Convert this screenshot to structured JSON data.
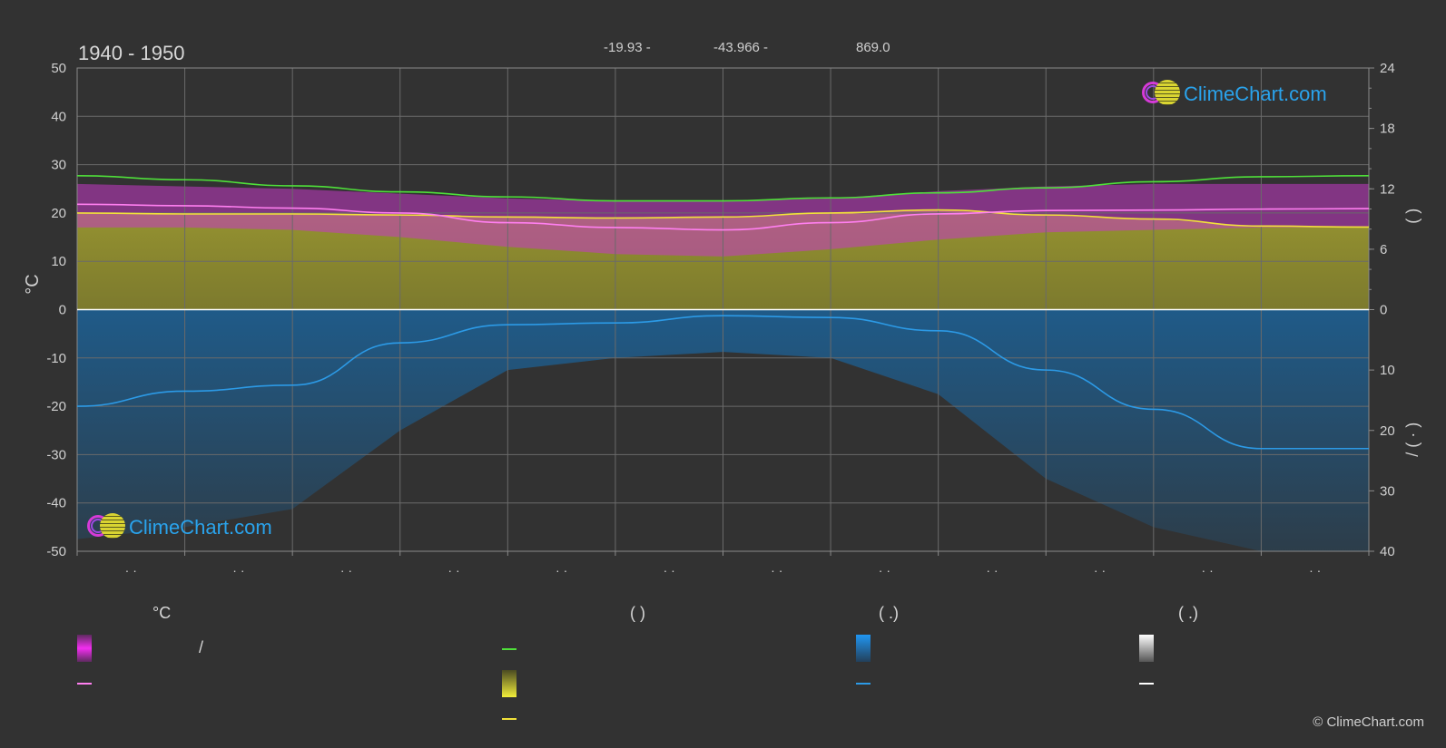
{
  "header": {
    "period": "1940 - 1950",
    "coords": [
      "-19.93 -",
      "-43.966 -",
      "869.0"
    ]
  },
  "logo": {
    "text": "ClimeChart.com"
  },
  "copyright": "© ClimeChart.com",
  "legend": {
    "col1_title": "°C",
    "col1_sep": "/",
    "col2_title": "(          )",
    "col3_title": "(   .)",
    "col4_title": "(   .)"
  },
  "colors": {
    "background": "#323232",
    "grid": "#6a6a6a",
    "temp_band": "#c438c6",
    "sun_band": "#a7a430",
    "precip_band": "#1d5f92",
    "daylight_line": "#4fe03a",
    "temp_mean_line": "#ff7ff0",
    "sunshine_line": "#f2e23a",
    "precip_line": "#2c9ae6",
    "zero_line": "#ffffff"
  },
  "chart_data": {
    "type": "line",
    "title": "1940 - 1950",
    "ylabel": "°C",
    "ylim": [
      -50,
      50
    ],
    "yticks": [
      50,
      40,
      30,
      20,
      10,
      0,
      -10,
      -20,
      -30,
      -40,
      -50
    ],
    "right_axis_upper": {
      "label": "(    )",
      "range": [
        0,
        24
      ],
      "ticks": [
        24,
        18,
        12,
        6,
        0
      ]
    },
    "right_axis_lower": {
      "label": "/   (  ·  )",
      "range": [
        0,
        40
      ],
      "ticks": [
        0,
        10,
        20,
        30,
        40
      ]
    },
    "x_tick_labels": [
      "· ·",
      "· ·",
      "· ·",
      "· ·",
      "· ·",
      "· ·",
      "· ·",
      "· ·",
      "· ·",
      "· ·",
      "· ·",
      "· ·"
    ],
    "grid": true,
    "x": [
      0,
      1,
      2,
      3,
      4,
      5,
      6,
      7,
      8,
      9,
      10,
      11,
      12
    ],
    "series": [
      {
        "key": "daylight",
        "axis": "hours",
        "values": [
          13.3,
          12.9,
          12.3,
          11.7,
          11.2,
          10.8,
          10.8,
          11.1,
          11.6,
          12.1,
          12.7,
          13.2,
          13.3
        ]
      },
      {
        "key": "sunshine",
        "axis": "hours",
        "values": [
          9.6,
          9.5,
          9.5,
          9.4,
          9.2,
          9.1,
          9.2,
          9.6,
          9.9,
          9.4,
          9.0,
          8.3,
          8.2
        ]
      },
      {
        "key": "temp_mean",
        "axis": "celsius",
        "values": [
          21.8,
          21.5,
          21.0,
          20.0,
          18.0,
          17.0,
          16.5,
          18.0,
          19.8,
          20.5,
          20.6,
          20.8,
          20.9
        ]
      },
      {
        "key": "precipitation",
        "axis": "mm",
        "values": [
          16.0,
          13.5,
          12.5,
          5.5,
          2.5,
          2.2,
          1.0,
          1.3,
          3.5,
          10.0,
          16.5,
          23.0,
          23.0
        ]
      }
    ],
    "bands": [
      {
        "key": "temp_range",
        "axis": "celsius",
        "upper": [
          26,
          25.5,
          25,
          24,
          23,
          22.5,
          22.5,
          23,
          24.5,
          25.5,
          26,
          26,
          26
        ],
        "lower": [
          17,
          17,
          16.5,
          15,
          13,
          11.5,
          11,
          12.5,
          14.5,
          16,
          16.5,
          17,
          17
        ]
      },
      {
        "key": "sunshine_range",
        "axis": "hours",
        "upper": [
          9.6,
          9.5,
          9.5,
          9.4,
          9.2,
          9.1,
          9.2,
          9.6,
          9.9,
          9.4,
          9.0,
          8.3,
          8.2
        ]
      },
      {
        "key": "precip_range",
        "axis": "mm",
        "upper": [
          38,
          36,
          33,
          20,
          10,
          8,
          7,
          8,
          14,
          28,
          36,
          40,
          40
        ]
      }
    ]
  }
}
